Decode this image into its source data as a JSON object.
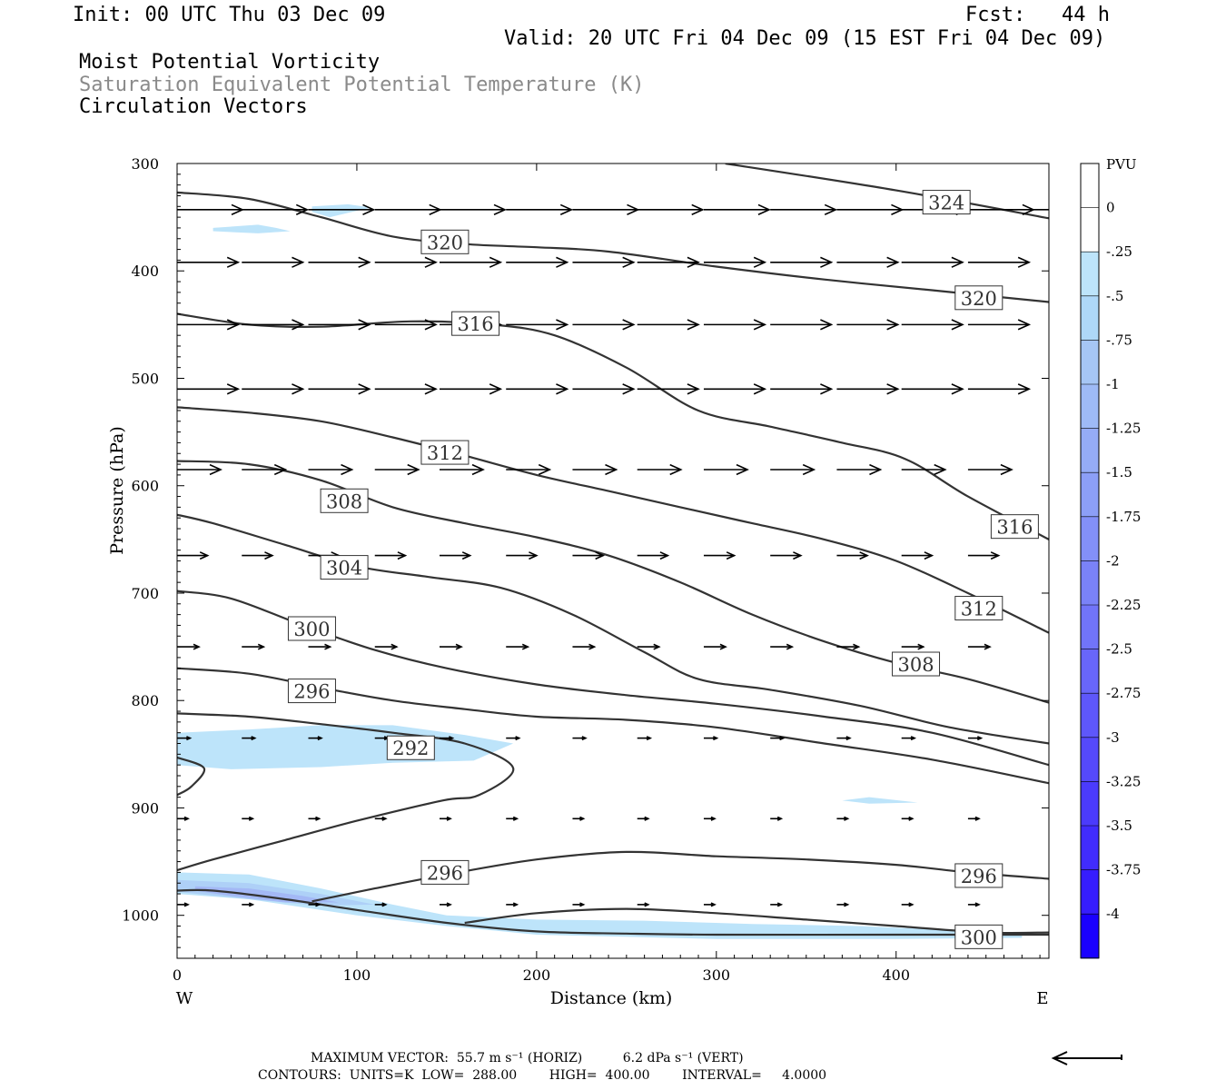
{
  "header": {
    "init": "Init: 00 UTC Thu 03 Dec 09",
    "fcst": "Fcst:   44 h",
    "valid": "Valid: 20 UTC Fri 04 Dec 09 (15 EST Fri 04 Dec 09)",
    "field1": "Moist Potential Vorticity",
    "field2": "Saturation Equivalent Potential Temperature (K)",
    "field3": "Circulation Vectors"
  },
  "footer": {
    "max_vector": "MAXIMUM VECTOR:  55.7 m s⁻¹ (HORIZ)          6.2 dPa s⁻¹ (VERT)",
    "contours": "CONTOURS:  UNITS=K  LOW=  288.00        HIGH=  400.00        INTERVAL=     4.0000"
  },
  "colors": {
    "contour": "#333333",
    "vector": "#000000",
    "pv_light": "#bde4fa"
  },
  "chart_data": {
    "type": "cross-section",
    "xlabel": "Distance (km)",
    "ylabel": "Pressure (hPa)",
    "xlim": [
      0,
      485
    ],
    "ylim": [
      1040,
      300
    ],
    "x_ticks": [
      0,
      100,
      200,
      300,
      400
    ],
    "y_ticks": [
      300,
      400,
      500,
      600,
      700,
      800,
      900,
      1000
    ],
    "x_end_labels": {
      "left": "W",
      "right": "E"
    },
    "colorbar": {
      "unit": "PVU",
      "labels": [
        "0",
        "-.25",
        "-.5",
        "-.75",
        "-1",
        "-1.25",
        "-1.5",
        "-1.75",
        "-2",
        "-2.25",
        "-2.5",
        "-2.75",
        "-3",
        "-3.25",
        "-3.5",
        "-3.75",
        "-4"
      ],
      "colors": [
        "#ffffff",
        "#ffffff",
        "#bde4fa",
        "#aed8f8",
        "#a6c6f5",
        "#9ebaf6",
        "#95acf6",
        "#8c9ff7",
        "#8390f8",
        "#7a82f8",
        "#7174f9",
        "#6866fa",
        "#5e57fb",
        "#5549fb",
        "#4b3bfc",
        "#412cfd",
        "#361dfe",
        "#1a00ff"
      ]
    },
    "contours": [
      {
        "label": "324",
        "label_at": [
          428,
          336
        ],
        "points": [
          [
            305,
            300
          ],
          [
            400,
            325
          ],
          [
            485,
            351
          ]
        ]
      },
      {
        "label": "320",
        "label_at": [
          149,
          373
        ],
        "points": [
          [
            0,
            327
          ],
          [
            40,
            333
          ],
          [
            80,
            350
          ],
          [
            120,
            368
          ],
          [
            160,
            375
          ],
          [
            200,
            378
          ],
          [
            240,
            382
          ],
          [
            300,
            396
          ],
          [
            360,
            408
          ],
          [
            420,
            418
          ],
          [
            485,
            429
          ]
        ]
      },
      {
        "label": "320",
        "label_at": [
          446,
          425
        ],
        "points": []
      },
      {
        "label": "316",
        "label_at": [
          166,
          449
        ],
        "points": [
          [
            0,
            440
          ],
          [
            40,
            450
          ],
          [
            80,
            452
          ],
          [
            130,
            447
          ],
          [
            175,
            450
          ],
          [
            210,
            460
          ],
          [
            250,
            490
          ],
          [
            290,
            530
          ],
          [
            330,
            545
          ],
          [
            370,
            560
          ],
          [
            405,
            575
          ],
          [
            440,
            610
          ],
          [
            485,
            650
          ]
        ]
      },
      {
        "label": "316",
        "label_at": [
          466,
          638
        ],
        "points": []
      },
      {
        "label": "312",
        "label_at": [
          149,
          569
        ],
        "points": [
          [
            0,
            527
          ],
          [
            40,
            532
          ],
          [
            80,
            540
          ],
          [
            120,
            555
          ],
          [
            160,
            572
          ],
          [
            200,
            590
          ],
          [
            240,
            605
          ],
          [
            280,
            620
          ],
          [
            320,
            635
          ],
          [
            360,
            650
          ],
          [
            400,
            670
          ],
          [
            440,
            700
          ],
          [
            485,
            737
          ]
        ]
      },
      {
        "label": "312",
        "label_at": [
          446,
          714
        ],
        "points": []
      },
      {
        "label": "308",
        "label_at": [
          93,
          614
        ],
        "points": [
          [
            0,
            577
          ],
          [
            40,
            580
          ],
          [
            80,
            595
          ],
          [
            120,
            620
          ],
          [
            160,
            635
          ],
          [
            200,
            648
          ],
          [
            240,
            665
          ],
          [
            280,
            690
          ],
          [
            320,
            720
          ],
          [
            360,
            745
          ],
          [
            400,
            765
          ],
          [
            440,
            780
          ],
          [
            485,
            802
          ]
        ]
      },
      {
        "label": "308",
        "label_at": [
          411,
          766
        ],
        "points": []
      },
      {
        "label": "304",
        "label_at": [
          93,
          676
        ],
        "points": [
          [
            0,
            627
          ],
          [
            20,
            635
          ],
          [
            60,
            655
          ],
          [
            100,
            675
          ],
          [
            140,
            685
          ],
          [
            180,
            695
          ],
          [
            220,
            720
          ],
          [
            260,
            755
          ],
          [
            290,
            780
          ],
          [
            330,
            790
          ],
          [
            380,
            805
          ],
          [
            430,
            825
          ],
          [
            485,
            840
          ]
        ]
      },
      {
        "label": "300",
        "label_at": [
          75,
          733
        ],
        "points": [
          [
            0,
            698
          ],
          [
            30,
            705
          ],
          [
            70,
            730
          ],
          [
            110,
            753
          ],
          [
            150,
            770
          ],
          [
            200,
            785
          ],
          [
            250,
            795
          ],
          [
            300,
            803
          ],
          [
            360,
            815
          ],
          [
            420,
            830
          ],
          [
            485,
            860
          ]
        ]
      },
      {
        "label": "296",
        "label_at": [
          75,
          791
        ],
        "points": [
          [
            0,
            770
          ],
          [
            40,
            775
          ],
          [
            80,
            788
          ],
          [
            120,
            800
          ],
          [
            160,
            808
          ],
          [
            200,
            815
          ],
          [
            250,
            818
          ],
          [
            300,
            825
          ],
          [
            360,
            840
          ],
          [
            420,
            855
          ],
          [
            485,
            877
          ]
        ]
      },
      {
        "label": "292",
        "label_at": [
          130,
          844
        ],
        "points": [
          [
            0,
            812
          ],
          [
            40,
            815
          ],
          [
            80,
            822
          ],
          [
            120,
            830
          ],
          [
            160,
            840
          ],
          [
            187,
            863
          ],
          [
            168,
            888
          ],
          [
            148,
            893
          ],
          [
            100,
            912
          ],
          [
            60,
            930
          ],
          [
            20,
            948
          ],
          [
            0,
            958
          ]
        ]
      },
      {
        "label": "292",
        "label_at": [
          0,
          0
        ],
        "points": [
          [
            0,
            853
          ],
          [
            15,
            863
          ],
          [
            8,
            880
          ],
          [
            0,
            888
          ]
        ]
      },
      {
        "label": "296",
        "label_at": [
          149,
          960
        ],
        "points": [
          [
            75,
            987
          ],
          [
            110,
            975
          ],
          [
            150,
            962
          ],
          [
            200,
            948
          ],
          [
            250,
            941
          ],
          [
            300,
            945
          ],
          [
            350,
            948
          ],
          [
            400,
            953
          ],
          [
            440,
            960
          ],
          [
            485,
            966
          ]
        ]
      },
      {
        "label": "296",
        "label_at": [
          446,
          963
        ],
        "points": []
      },
      {
        "label": "300",
        "label_at": [
          446,
          1020
        ],
        "points": [
          [
            160,
            1007
          ],
          [
            200,
            998
          ],
          [
            250,
            994
          ],
          [
            300,
            998
          ],
          [
            350,
            1004
          ],
          [
            400,
            1010
          ],
          [
            450,
            1016
          ],
          [
            485,
            1016
          ]
        ]
      },
      {
        "label": "ground",
        "label_at": [
          0,
          0
        ],
        "points": [
          [
            0,
            977
          ],
          [
            20,
            977
          ],
          [
            60,
            985
          ],
          [
            100,
            995
          ],
          [
            150,
            1007
          ],
          [
            200,
            1015
          ],
          [
            250,
            1017
          ],
          [
            300,
            1018
          ],
          [
            400,
            1018
          ],
          [
            485,
            1018
          ]
        ]
      }
    ],
    "pv_shading": [
      {
        "level": "-0.5",
        "points": [
          [
            20,
            360
          ],
          [
            45,
            357
          ],
          [
            55,
            360
          ],
          [
            63,
            363
          ],
          [
            45,
            365
          ],
          [
            20,
            363
          ]
        ]
      },
      {
        "level": "-0.5",
        "points": [
          [
            75,
            340
          ],
          [
            95,
            338
          ],
          [
            108,
            341
          ],
          [
            95,
            346
          ],
          [
            85,
            350
          ],
          [
            75,
            345
          ]
        ]
      },
      {
        "level": "-0.5",
        "points": [
          [
            0,
            830
          ],
          [
            40,
            827
          ],
          [
            80,
            823
          ],
          [
            120,
            823
          ],
          [
            160,
            832
          ],
          [
            187,
            840
          ],
          [
            165,
            856
          ],
          [
            120,
            858
          ],
          [
            80,
            862
          ],
          [
            30,
            864
          ],
          [
            0,
            860
          ]
        ]
      },
      {
        "level": "-0.5",
        "points": [
          [
            370,
            893
          ],
          [
            385,
            890
          ],
          [
            412,
            895
          ],
          [
            385,
            896
          ]
        ]
      },
      {
        "level": "-0.5",
        "points": [
          [
            0,
            960
          ],
          [
            40,
            962
          ],
          [
            80,
            975
          ],
          [
            120,
            990
          ],
          [
            150,
            1000
          ],
          [
            200,
            1004
          ],
          [
            260,
            1005
          ],
          [
            320,
            1008
          ],
          [
            380,
            1010
          ],
          [
            420,
            1013
          ],
          [
            470,
            1018
          ],
          [
            470,
            1021
          ],
          [
            400,
            1022
          ],
          [
            300,
            1022
          ],
          [
            200,
            1018
          ],
          [
            150,
            1010
          ],
          [
            100,
            1000
          ],
          [
            40,
            985
          ],
          [
            0,
            980
          ]
        ]
      },
      {
        "level": "-0.75",
        "points": [
          [
            0,
            967
          ],
          [
            40,
            970
          ],
          [
            80,
            980
          ],
          [
            110,
            990
          ],
          [
            80,
            991
          ],
          [
            40,
            985
          ],
          [
            0,
            978
          ]
        ]
      },
      {
        "level": "-1",
        "points": [
          [
            10,
            973
          ],
          [
            40,
            975
          ],
          [
            70,
            982
          ],
          [
            90,
            988
          ],
          [
            60,
            988
          ],
          [
            30,
            982
          ],
          [
            10,
            977
          ]
        ]
      }
    ],
    "vectors": [
      {
        "p": 343,
        "xs": [
          0,
          36,
          73,
          110,
          146,
          183,
          220,
          256,
          293,
          330,
          367,
          403,
          440,
          475
        ],
        "u": 30,
        "w": 0
      },
      {
        "p": 392,
        "xs": [
          0,
          36,
          73,
          110,
          146,
          183,
          220,
          256,
          293,
          330,
          367,
          403,
          440
        ],
        "u": 28,
        "w": 0
      },
      {
        "p": 450,
        "xs": [
          0,
          36,
          73,
          110,
          146,
          183,
          220,
          256,
          293,
          330,
          367,
          403,
          440
        ],
        "u": 28,
        "w": 0
      },
      {
        "p": 510,
        "xs": [
          0,
          36,
          73,
          110,
          146,
          183,
          220,
          256,
          293,
          330,
          367,
          403,
          440
        ],
        "u": 28,
        "w": 0
      },
      {
        "p": 585,
        "xs": [
          0,
          36,
          73,
          110,
          146,
          183,
          220,
          256,
          293,
          330,
          367,
          403,
          440
        ],
        "u": 20,
        "w": 0
      },
      {
        "p": 665,
        "xs": [
          0,
          36,
          73,
          110,
          146,
          183,
          220,
          256,
          293,
          330,
          367,
          403,
          440
        ],
        "u": 14,
        "w": 0
      },
      {
        "p": 750,
        "xs": [
          0,
          36,
          73,
          110,
          146,
          183,
          220,
          256,
          293,
          330,
          367,
          403,
          440
        ],
        "u": 10,
        "w": 0
      },
      {
        "p": 835,
        "xs": [
          0,
          36,
          73,
          110,
          146,
          183,
          220,
          256,
          293,
          330,
          367,
          403,
          440
        ],
        "u": 6,
        "w": 0
      },
      {
        "p": 910,
        "xs": [
          0,
          36,
          73,
          110,
          146,
          183,
          220,
          256,
          293,
          330,
          367,
          403,
          440
        ],
        "u": 5,
        "w": 0
      },
      {
        "p": 990,
        "xs": [
          0,
          36,
          73,
          110,
          146,
          183,
          220,
          256,
          293,
          330,
          367,
          403,
          440
        ],
        "u": 5,
        "w": 0
      }
    ]
  }
}
